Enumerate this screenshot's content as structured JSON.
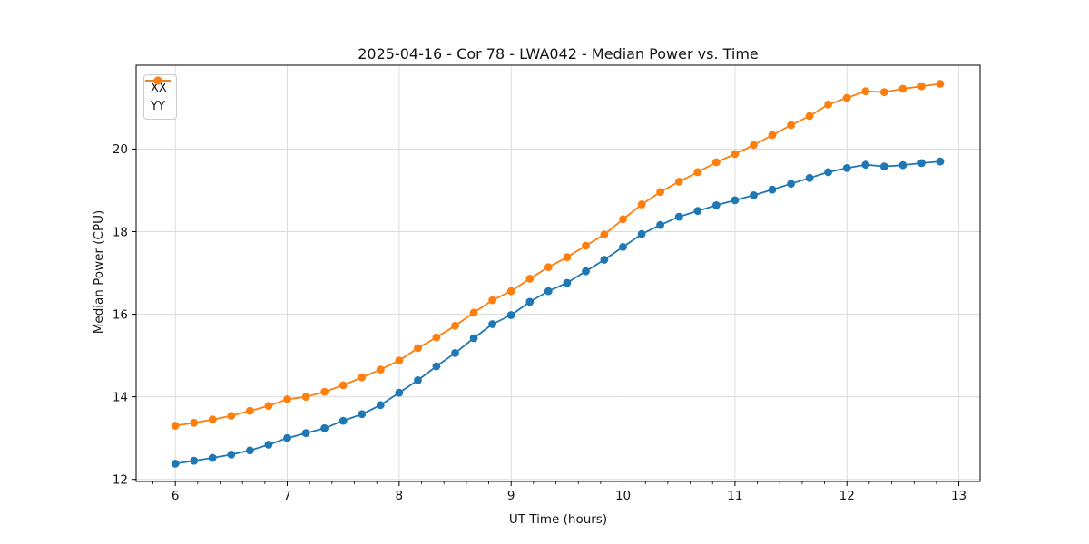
{
  "chart_data": {
    "type": "line",
    "title": "2025-04-16 - Cor 78 - LWA042 - Median Power vs. Time",
    "xlabel": "UT Time (hours)",
    "ylabel": "Median Power (CPU)",
    "xlim": [
      5.65,
      13.19
    ],
    "ylim": [
      11.95,
      22.03
    ],
    "x_ticks": [
      6,
      7,
      8,
      9,
      10,
      11,
      12,
      13
    ],
    "x_minor_tick_step": 0.2,
    "y_ticks": [
      12,
      14,
      16,
      18,
      20
    ],
    "grid": true,
    "grid_color": "#dcdcdc",
    "legend_position": "upper-left",
    "x": [
      6.0,
      6.167,
      6.333,
      6.5,
      6.667,
      6.833,
      7.0,
      7.167,
      7.333,
      7.5,
      7.667,
      7.833,
      8.0,
      8.167,
      8.333,
      8.5,
      8.667,
      8.833,
      9.0,
      9.167,
      9.333,
      9.5,
      9.667,
      9.833,
      10.0,
      10.167,
      10.333,
      10.5,
      10.667,
      10.833,
      11.0,
      11.167,
      11.333,
      11.5,
      11.667,
      11.833,
      12.0,
      12.167,
      12.333,
      12.5,
      12.667,
      12.833
    ],
    "series": [
      {
        "name": "XX",
        "color": "#1f77b4",
        "values": [
          12.38,
          12.45,
          12.52,
          12.6,
          12.7,
          12.84,
          13.0,
          13.12,
          13.24,
          13.42,
          13.58,
          13.8,
          14.1,
          14.4,
          14.74,
          15.06,
          15.42,
          15.76,
          15.98,
          16.3,
          16.56,
          16.76,
          17.04,
          17.32,
          17.63,
          17.94,
          18.16,
          18.36,
          18.5,
          18.64,
          18.76,
          18.88,
          19.02,
          19.16,
          19.3,
          19.44,
          19.54,
          19.62,
          19.58,
          19.61,
          19.66,
          19.7
        ]
      },
      {
        "name": "YY",
        "color": "#ff7f0e",
        "values": [
          13.3,
          13.37,
          13.45,
          13.54,
          13.66,
          13.78,
          13.94,
          14.0,
          14.12,
          14.28,
          14.47,
          14.66,
          14.88,
          15.18,
          15.44,
          15.72,
          16.04,
          16.34,
          16.56,
          16.86,
          17.14,
          17.38,
          17.66,
          17.93,
          18.3,
          18.66,
          18.96,
          19.21,
          19.44,
          19.68,
          19.88,
          20.1,
          20.34,
          20.58,
          20.8,
          21.08,
          21.24,
          21.4,
          21.38,
          21.46,
          21.52,
          21.58
        ]
      }
    ]
  }
}
